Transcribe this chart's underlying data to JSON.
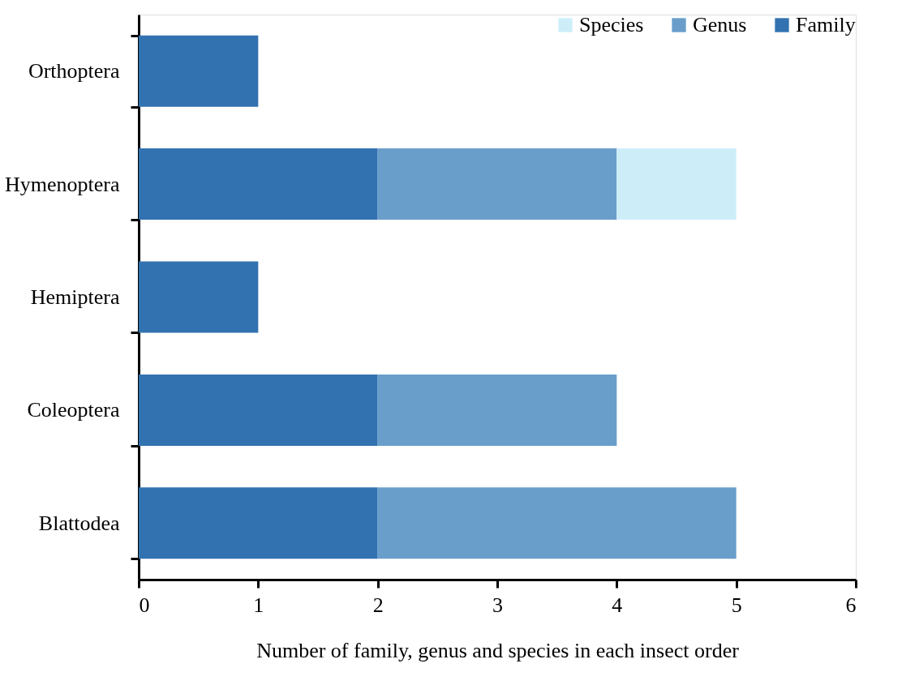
{
  "chart_data": {
    "type": "bar",
    "orientation": "horizontal",
    "stacked": true,
    "xlabel": "Number of family, genus and species in each insect order",
    "categories": [
      "Orthoptera",
      "Hymenoptera",
      "Hemiptera",
      "Coleoptera",
      "Blattodea"
    ],
    "series": [
      {
        "name": "Family",
        "color": "#3272b0",
        "values": [
          1,
          2,
          1,
          2,
          2
        ]
      },
      {
        "name": "Genus",
        "color": "#699ecb",
        "values": [
          null,
          2,
          null,
          2,
          3
        ]
      },
      {
        "name": "Species",
        "color": "#cdeef9",
        "values": [
          null,
          1,
          null,
          null,
          null
        ]
      }
    ],
    "xlim": [
      0,
      6
    ],
    "xticks": [
      0,
      1,
      2,
      3,
      4,
      5,
      6
    ],
    "grid": false,
    "legend": "top right"
  }
}
